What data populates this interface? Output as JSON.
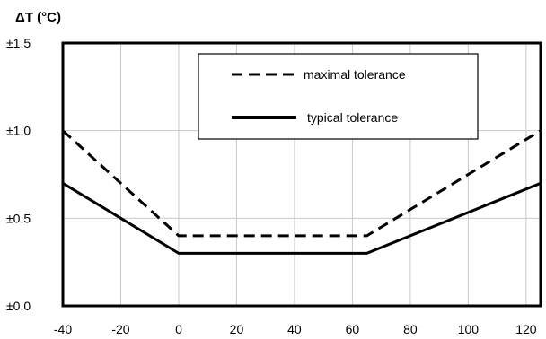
{
  "chart_data": {
    "type": "line",
    "ylabel": "ΔT (°C)",
    "xlabel": "",
    "xlim": [
      -40,
      125
    ],
    "ylim": [
      0,
      1.5
    ],
    "x_ticks": [
      -40,
      -20,
      0,
      20,
      40,
      60,
      80,
      100,
      120
    ],
    "y_ticks": [
      {
        "value": 0.0,
        "label": "±0.0"
      },
      {
        "value": 0.5,
        "label": "±0.5"
      },
      {
        "value": 1.0,
        "label": "±1.0"
      },
      {
        "value": 1.5,
        "label": "±1.5"
      }
    ],
    "grid": true,
    "legend_position": "top-right",
    "series": [
      {
        "name": "maximal tolerance",
        "style": "dashed",
        "x": [
          -40,
          0,
          65,
          125
        ],
        "y": [
          1.0,
          0.4,
          0.4,
          1.0
        ]
      },
      {
        "name": "typical tolerance",
        "style": "solid",
        "x": [
          -40,
          0,
          65,
          125
        ],
        "y": [
          0.7,
          0.3,
          0.3,
          0.7
        ]
      }
    ],
    "colors": {
      "line": "#000000",
      "grid": "#c8c8c8",
      "background": "#ffffff"
    }
  }
}
